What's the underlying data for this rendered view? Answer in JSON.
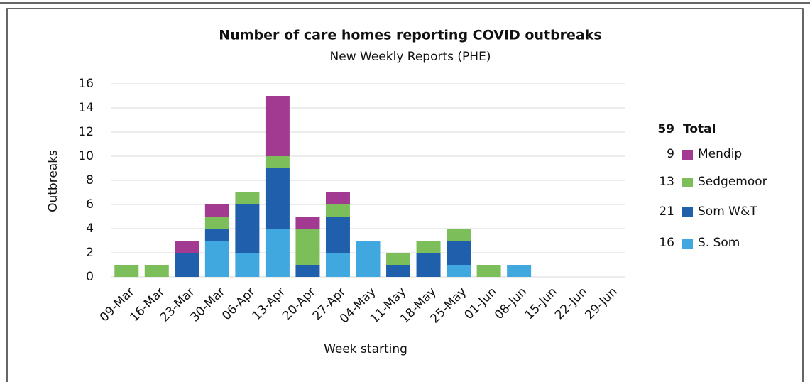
{
  "chart_data": {
    "type": "stacked_bar",
    "title": "Number of care homes reporting COVID outbreaks",
    "subtitle": "New Weekly Reports (PHE)",
    "y_label": "Outbreaks",
    "x_label": "Week starting",
    "categories": [
      "09-Mar",
      "16-Mar",
      "23-Mar",
      "30-Mar",
      "06-Apr",
      "13-Apr",
      "20-Apr",
      "27-Apr",
      "04-May",
      "11-May",
      "18-May",
      "25-May",
      "01-Jun",
      "08-Jun",
      "15-Jun",
      "22-Jun",
      "29-Jun"
    ],
    "series": [
      {
        "name": "S. Som",
        "color": "#41a7df",
        "total": 16,
        "values": [
          0,
          0,
          0,
          3,
          2,
          4,
          0,
          2,
          3,
          0,
          0,
          1,
          0,
          1,
          0,
          0,
          0
        ]
      },
      {
        "name": "Som W&T",
        "color": "#1f5fab",
        "total": 21,
        "values": [
          0,
          0,
          2,
          1,
          4,
          5,
          1,
          3,
          0,
          1,
          2,
          2,
          0,
          0,
          0,
          0,
          0
        ]
      },
      {
        "name": "Sedgemoor",
        "color": "#7cbf5a",
        "total": 13,
        "values": [
          1,
          1,
          0,
          1,
          1,
          1,
          3,
          1,
          0,
          1,
          1,
          1,
          1,
          0,
          0,
          0,
          0
        ]
      },
      {
        "name": "Mendip",
        "color": "#a23a92",
        "total": 9,
        "values": [
          0,
          0,
          1,
          1,
          0,
          5,
          1,
          1,
          0,
          0,
          0,
          0,
          0,
          0,
          0,
          0,
          0
        ]
      }
    ],
    "total_label": "Total",
    "total": 59,
    "ylim": [
      0,
      16
    ],
    "yticks": [
      0,
      2,
      4,
      6,
      8,
      10,
      12,
      14,
      16
    ],
    "grid": true
  }
}
